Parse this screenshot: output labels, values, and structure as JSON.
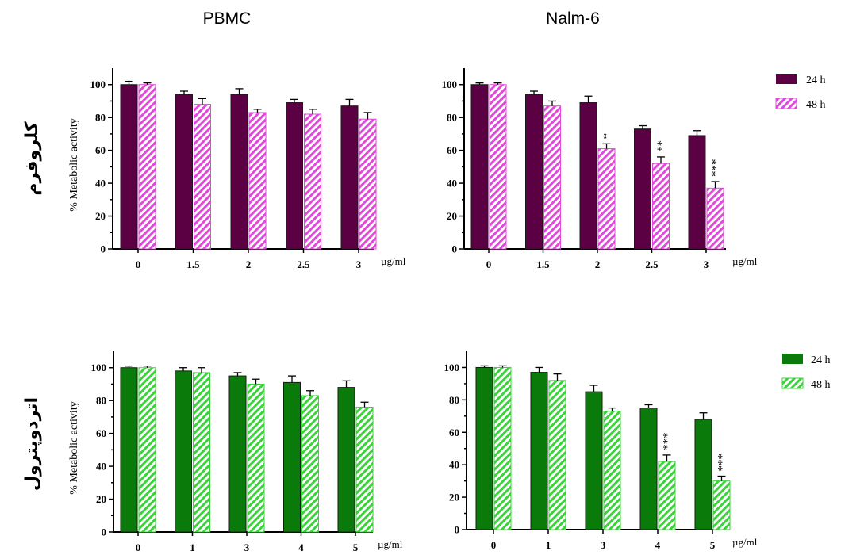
{
  "column_titles": [
    "PBMC",
    "Nalm-6"
  ],
  "row_labels": [
    "كلروفرم",
    "اتردوپترول"
  ],
  "legends": [
    {
      "color": "#5a0043",
      "items": [
        "24 h",
        "48 h"
      ]
    },
    {
      "color": "#0a7a0a",
      "items": [
        "24 h",
        "48 h"
      ]
    }
  ],
  "chart_data": [
    {
      "type": "bar",
      "title": "PBMC",
      "ylabel": "% Metabolic activity",
      "xlabel": "µg/ml",
      "ylim": [
        0,
        110
      ],
      "yticks": [
        "0",
        "20",
        "40",
        "60",
        "80",
        "100"
      ],
      "categories": [
        "0",
        "1.5",
        "2",
        "2.5",
        "3"
      ],
      "series": [
        {
          "name": "24 h",
          "values": [
            100,
            94,
            94,
            89,
            87
          ],
          "errors": [
            2,
            2,
            3.5,
            2,
            4
          ],
          "color": "#5a0043",
          "pattern": "solid"
        },
        {
          "name": "48 h",
          "values": [
            100,
            88,
            83,
            82,
            79
          ],
          "errors": [
            1,
            3.5,
            2,
            3,
            4
          ],
          "color": "#e04ad8",
          "pattern": "hatched"
        }
      ],
      "significance": [
        "",
        "",
        "",
        "",
        ""
      ]
    },
    {
      "type": "bar",
      "title": "Nalm-6",
      "ylabel": "",
      "xlabel": "µg/ml",
      "ylim": [
        0,
        110
      ],
      "yticks": [
        "0",
        "20",
        "40",
        "60",
        "80",
        "100"
      ],
      "categories": [
        "0",
        "1.5",
        "2",
        "2.5",
        "3"
      ],
      "series": [
        {
          "name": "24 h",
          "values": [
            100,
            94,
            89,
            73,
            69
          ],
          "errors": [
            1,
            2,
            4,
            2,
            3
          ],
          "color": "#5a0043",
          "pattern": "solid"
        },
        {
          "name": "48 h",
          "values": [
            100,
            87,
            61,
            52,
            37
          ],
          "errors": [
            1,
            3,
            3,
            4,
            4
          ],
          "color": "#e04ad8",
          "pattern": "hatched"
        }
      ],
      "significance": [
        "",
        "",
        "*",
        "**",
        "***"
      ]
    },
    {
      "type": "bar",
      "title": "PBMC",
      "ylabel": "% Metabolic activity",
      "xlabel": "µg/ml",
      "ylim": [
        0,
        110
      ],
      "yticks": [
        "0",
        "20",
        "40",
        "60",
        "80",
        "100"
      ],
      "categories": [
        "0",
        "1",
        "3",
        "4",
        "5"
      ],
      "series": [
        {
          "name": "24 h",
          "values": [
            100,
            98,
            95,
            91,
            88
          ],
          "errors": [
            1,
            2,
            2,
            4,
            4
          ],
          "color": "#0a7a0a",
          "pattern": "solid"
        },
        {
          "name": "48 h",
          "values": [
            100,
            97,
            90,
            83,
            76
          ],
          "errors": [
            1,
            3,
            3,
            3,
            3
          ],
          "color": "#3ad33a",
          "pattern": "hatched"
        }
      ],
      "significance": [
        "",
        "",
        "",
        "",
        ""
      ]
    },
    {
      "type": "bar",
      "title": "Nalm-6",
      "ylabel": "",
      "xlabel": "µg/ml",
      "ylim": [
        0,
        110
      ],
      "yticks": [
        "0",
        "20",
        "40",
        "60",
        "80",
        "100"
      ],
      "categories": [
        "0",
        "1",
        "3",
        "4",
        "5"
      ],
      "series": [
        {
          "name": "24 h",
          "values": [
            100,
            97,
            85,
            75,
            68
          ],
          "errors": [
            1,
            3,
            4,
            2,
            4
          ],
          "color": "#0a7a0a",
          "pattern": "solid"
        },
        {
          "name": "48 h",
          "values": [
            100,
            92,
            73,
            42,
            30
          ],
          "errors": [
            1,
            4,
            2,
            4,
            3
          ],
          "color": "#3ad33a",
          "pattern": "hatched"
        }
      ],
      "significance": [
        "",
        "",
        "",
        "***",
        "***"
      ]
    }
  ]
}
